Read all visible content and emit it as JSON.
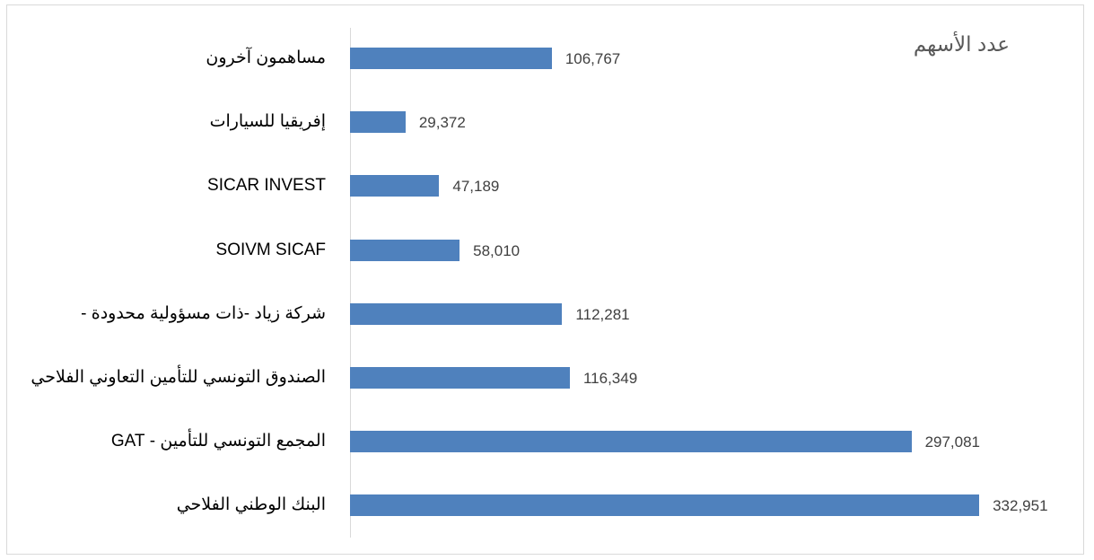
{
  "chart_data": {
    "type": "bar",
    "orientation": "horizontal",
    "title": "عدد الأسهم",
    "categories": [
      "مساهمون آخرون",
      "إفريقيا للسيارات",
      "SICAR INVEST",
      "SOIVM SICAF",
      "شركة زياد  -ذات مسؤولية محدودة -",
      "الصندوق التونسي للتأمين التعاوني الفلاحي",
      "المجمع التونسي للتأمين -  GAT",
      "البنك الوطني الفلاحي"
    ],
    "values": [
      106767,
      29372,
      47189,
      58010,
      112281,
      116349,
      297081,
      332951
    ],
    "value_labels": [
      "106,767",
      "29,372",
      "47,189",
      "58,010",
      "112,281",
      "116,349",
      "297,081",
      "332,951"
    ],
    "color": "#4f81bd",
    "xlim": [
      0,
      350000
    ]
  }
}
